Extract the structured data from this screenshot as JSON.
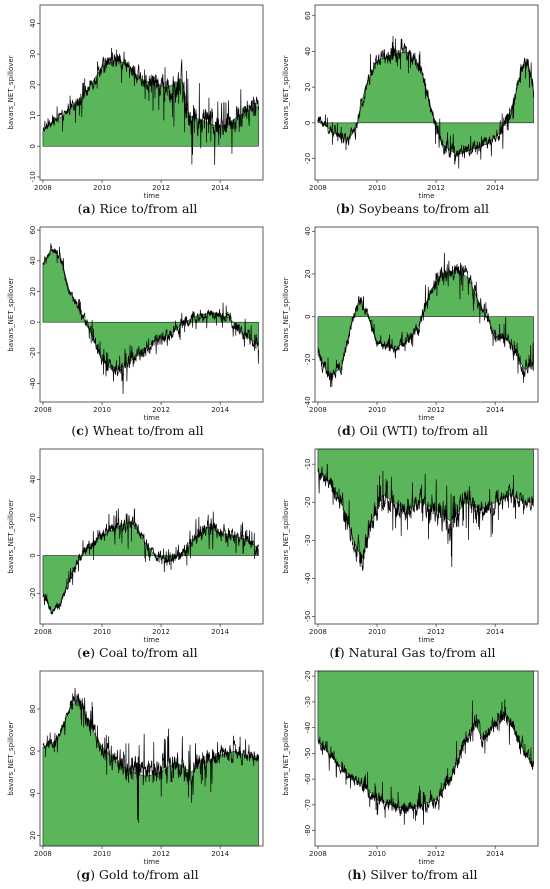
{
  "colors": {
    "fill": "#5BB55B",
    "line": "#000000",
    "axis": "#333333"
  },
  "chart_data": [
    {
      "type": "area",
      "letter": "a",
      "caption_text": "Rice to/from all",
      "xlabel": "time",
      "ylabel": "bavars_NET_spillover",
      "x_ticks": [
        2008,
        2010,
        2012,
        2014
      ],
      "y_ticks": [
        -10,
        0,
        10,
        20,
        30,
        40
      ],
      "xlim": [
        2007.9,
        2015.45
      ],
      "ylim": [
        -11,
        46
      ],
      "x_range": [
        2008.0,
        2015.3
      ],
      "baseline": 0,
      "anchors": [
        [
          2008.0,
          5
        ],
        [
          2008.3,
          8
        ],
        [
          2008.7,
          10
        ],
        [
          2009.0,
          13
        ],
        [
          2009.5,
          18
        ],
        [
          2010.0,
          26
        ],
        [
          2010.5,
          28
        ],
        [
          2010.8,
          27
        ],
        [
          2011.3,
          22
        ],
        [
          2011.8,
          20
        ],
        [
          2012.2,
          19
        ],
        [
          2012.7,
          22
        ],
        [
          2012.95,
          10
        ],
        [
          2013.5,
          8
        ],
        [
          2014.0,
          6
        ],
        [
          2014.5,
          9
        ],
        [
          2015.0,
          12
        ],
        [
          2015.3,
          13
        ]
      ],
      "noise": [
        [
          2008.0,
          2
        ],
        [
          2009.0,
          3
        ],
        [
          2010.0,
          4
        ],
        [
          2011.0,
          4
        ],
        [
          2012.0,
          6
        ],
        [
          2012.6,
          10
        ],
        [
          2013.2,
          8
        ],
        [
          2014.0,
          6
        ],
        [
          2015.3,
          6
        ]
      ]
    },
    {
      "type": "area",
      "letter": "b",
      "caption_text": "Soybeans to/from all",
      "xlabel": "time",
      "ylabel": "bavars_NET_spillover",
      "x_ticks": [
        2008,
        2010,
        2012,
        2014
      ],
      "y_ticks": [
        -20,
        0,
        20,
        40,
        60
      ],
      "xlim": [
        2007.9,
        2015.45
      ],
      "ylim": [
        -32,
        66
      ],
      "x_range": [
        2008.0,
        2015.3
      ],
      "baseline": 0,
      "anchors": [
        [
          2008.0,
          2
        ],
        [
          2008.5,
          -5
        ],
        [
          2009.0,
          -10
        ],
        [
          2009.3,
          -3
        ],
        [
          2009.6,
          20
        ],
        [
          2010.0,
          35
        ],
        [
          2010.5,
          38
        ],
        [
          2011.0,
          40
        ],
        [
          2011.5,
          30
        ],
        [
          2011.8,
          10
        ],
        [
          2012.2,
          -12
        ],
        [
          2012.7,
          -18
        ],
        [
          2013.2,
          -15
        ],
        [
          2013.7,
          -12
        ],
        [
          2014.2,
          -5
        ],
        [
          2014.6,
          10
        ],
        [
          2014.9,
          30
        ],
        [
          2015.1,
          35
        ],
        [
          2015.3,
          18
        ]
      ],
      "noise": [
        [
          2008.0,
          4
        ],
        [
          2009.5,
          6
        ],
        [
          2011.0,
          7
        ],
        [
          2012.5,
          7
        ],
        [
          2014.0,
          6
        ],
        [
          2015.3,
          7
        ]
      ]
    },
    {
      "type": "area",
      "letter": "c",
      "caption_text": "Wheat to/from all",
      "xlabel": "time",
      "ylabel": "bavars_NET_spillover",
      "x_ticks": [
        2008,
        2010,
        2012,
        2014
      ],
      "y_ticks": [
        -40,
        -20,
        0,
        20,
        40,
        60
      ],
      "xlim": [
        2007.9,
        2015.45
      ],
      "ylim": [
        -52,
        62
      ],
      "x_range": [
        2008.0,
        2015.3
      ],
      "baseline": 0,
      "anchors": [
        [
          2008.0,
          38
        ],
        [
          2008.3,
          48
        ],
        [
          2008.6,
          42
        ],
        [
          2008.9,
          20
        ],
        [
          2009.3,
          5
        ],
        [
          2009.7,
          -10
        ],
        [
          2010.0,
          -25
        ],
        [
          2010.4,
          -32
        ],
        [
          2010.8,
          -28
        ],
        [
          2011.3,
          -20
        ],
        [
          2011.8,
          -12
        ],
        [
          2012.3,
          -8
        ],
        [
          2012.8,
          0
        ],
        [
          2013.3,
          5
        ],
        [
          2013.8,
          6
        ],
        [
          2014.3,
          3
        ],
        [
          2014.8,
          -8
        ],
        [
          2015.3,
          -15
        ]
      ],
      "noise": [
        [
          2008.0,
          4
        ],
        [
          2009.0,
          5
        ],
        [
          2010.5,
          8
        ],
        [
          2012.0,
          7
        ],
        [
          2013.5,
          6
        ],
        [
          2015.3,
          7
        ]
      ]
    },
    {
      "type": "area",
      "letter": "d",
      "caption_text": "Oil (WTI) to/from all",
      "xlabel": "time",
      "ylabel": "bavars_NET_spillover",
      "x_ticks": [
        2008,
        2010,
        2012,
        2014
      ],
      "y_ticks": [
        -40,
        -20,
        0,
        20,
        40
      ],
      "xlim": [
        2007.9,
        2015.45
      ],
      "ylim": [
        -40,
        42
      ],
      "x_range": [
        2008.0,
        2015.3
      ],
      "baseline": 0,
      "anchors": [
        [
          2008.0,
          -18
        ],
        [
          2008.4,
          -28
        ],
        [
          2008.8,
          -24
        ],
        [
          2009.1,
          -5
        ],
        [
          2009.4,
          8
        ],
        [
          2009.7,
          0
        ],
        [
          2010.0,
          -12
        ],
        [
          2010.5,
          -15
        ],
        [
          2011.0,
          -12
        ],
        [
          2011.4,
          -5
        ],
        [
          2011.8,
          12
        ],
        [
          2012.2,
          20
        ],
        [
          2012.7,
          22
        ],
        [
          2013.1,
          18
        ],
        [
          2013.5,
          5
        ],
        [
          2014.0,
          -8
        ],
        [
          2014.5,
          -12
        ],
        [
          2015.0,
          -25
        ],
        [
          2015.3,
          -22
        ]
      ],
      "noise": [
        [
          2008.0,
          5
        ],
        [
          2009.5,
          4
        ],
        [
          2011.0,
          4
        ],
        [
          2012.5,
          7
        ],
        [
          2014.0,
          5
        ],
        [
          2015.3,
          6
        ]
      ]
    },
    {
      "type": "area",
      "letter": "e",
      "caption_text": "Coal to/from all",
      "xlabel": "time",
      "ylabel": "bavars_NET_spillover",
      "x_ticks": [
        2008,
        2010,
        2012,
        2014
      ],
      "y_ticks": [
        -20,
        0,
        20,
        40
      ],
      "xlim": [
        2007.9,
        2015.45
      ],
      "ylim": [
        -36,
        56
      ],
      "x_range": [
        2008.0,
        2015.3
      ],
      "baseline": 0,
      "anchors": [
        [
          2008.0,
          -20
        ],
        [
          2008.3,
          -30
        ],
        [
          2008.6,
          -25
        ],
        [
          2009.0,
          -8
        ],
        [
          2009.5,
          5
        ],
        [
          2010.0,
          10
        ],
        [
          2010.5,
          15
        ],
        [
          2011.0,
          18
        ],
        [
          2011.4,
          8
        ],
        [
          2011.8,
          0
        ],
        [
          2012.3,
          -3
        ],
        [
          2012.8,
          2
        ],
        [
          2013.2,
          10
        ],
        [
          2013.6,
          15
        ],
        [
          2014.0,
          12
        ],
        [
          2014.5,
          10
        ],
        [
          2015.0,
          8
        ],
        [
          2015.3,
          3
        ]
      ],
      "noise": [
        [
          2008.0,
          3
        ],
        [
          2009.5,
          5
        ],
        [
          2011.0,
          7
        ],
        [
          2012.0,
          4
        ],
        [
          2013.5,
          9
        ],
        [
          2015.3,
          5
        ]
      ]
    },
    {
      "type": "area",
      "letter": "f",
      "caption_text": "Natural Gas to/from all",
      "xlabel": "time",
      "ylabel": "bavars_NET_spillover",
      "x_ticks": [
        2008,
        2010,
        2012,
        2014
      ],
      "y_ticks": [
        -50,
        -40,
        -30,
        -20,
        -10
      ],
      "xlim": [
        2007.9,
        2015.45
      ],
      "ylim": [
        -52,
        -6
      ],
      "x_range": [
        2008.0,
        2015.3
      ],
      "baseline": -6,
      "anchors": [
        [
          2008.0,
          -12
        ],
        [
          2008.4,
          -15
        ],
        [
          2008.8,
          -20
        ],
        [
          2009.2,
          -30
        ],
        [
          2009.5,
          -35
        ],
        [
          2009.8,
          -25
        ],
        [
          2010.2,
          -18
        ],
        [
          2010.6,
          -20
        ],
        [
          2011.0,
          -22
        ],
        [
          2011.5,
          -20
        ],
        [
          2012.0,
          -22
        ],
        [
          2012.5,
          -25
        ],
        [
          2013.0,
          -20
        ],
        [
          2013.5,
          -22
        ],
        [
          2014.0,
          -20
        ],
        [
          2014.5,
          -18
        ],
        [
          2015.0,
          -20
        ],
        [
          2015.3,
          -20
        ]
      ],
      "noise": [
        [
          2008.0,
          3
        ],
        [
          2009.5,
          6
        ],
        [
          2011.0,
          5
        ],
        [
          2012.5,
          7
        ],
        [
          2014.0,
          4
        ],
        [
          2015.3,
          3
        ]
      ]
    },
    {
      "type": "area",
      "letter": "g",
      "caption_text": "Gold to/from all",
      "xlabel": "time",
      "ylabel": "bavars_NET_spillover",
      "x_ticks": [
        2008,
        2010,
        2012,
        2014
      ],
      "y_ticks": [
        20,
        40,
        60,
        80
      ],
      "xlim": [
        2007.9,
        2015.45
      ],
      "ylim": [
        15,
        98
      ],
      "x_range": [
        2008.0,
        2015.3
      ],
      "baseline": 15,
      "anchors": [
        [
          2008.0,
          62
        ],
        [
          2008.5,
          65
        ],
        [
          2008.9,
          80
        ],
        [
          2009.2,
          85
        ],
        [
          2009.6,
          72
        ],
        [
          2010.0,
          62
        ],
        [
          2010.5,
          55
        ],
        [
          2011.0,
          50
        ],
        [
          2011.5,
          48
        ],
        [
          2012.0,
          50
        ],
        [
          2012.5,
          55
        ],
        [
          2013.0,
          50
        ],
        [
          2013.5,
          55
        ],
        [
          2014.0,
          58
        ],
        [
          2014.5,
          60
        ],
        [
          2015.0,
          57
        ],
        [
          2015.3,
          58
        ]
      ],
      "noise": [
        [
          2008.0,
          3
        ],
        [
          2009.0,
          5
        ],
        [
          2010.3,
          9
        ],
        [
          2011.5,
          12
        ],
        [
          2012.8,
          11
        ],
        [
          2014.0,
          7
        ],
        [
          2015.3,
          5
        ]
      ]
    },
    {
      "type": "area",
      "letter": "h",
      "caption_text": "Silver to/from all",
      "xlabel": "time",
      "ylabel": "bavars_NET_spillover",
      "x_ticks": [
        2008,
        2010,
        2012,
        2014
      ],
      "y_ticks": [
        -80,
        -70,
        -60,
        -50,
        -40,
        -30,
        -20
      ],
      "xlim": [
        2007.9,
        2015.45
      ],
      "ylim": [
        -86,
        -18
      ],
      "x_range": [
        2008.0,
        2015.3
      ],
      "baseline": -18,
      "anchors": [
        [
          2008.0,
          -45
        ],
        [
          2008.5,
          -52
        ],
        [
          2009.0,
          -58
        ],
        [
          2009.5,
          -62
        ],
        [
          2010.0,
          -68
        ],
        [
          2010.5,
          -70
        ],
        [
          2011.0,
          -72
        ],
        [
          2011.5,
          -70
        ],
        [
          2012.0,
          -68
        ],
        [
          2012.5,
          -60
        ],
        [
          2013.0,
          -45
        ],
        [
          2013.3,
          -38
        ],
        [
          2013.6,
          -45
        ],
        [
          2014.0,
          -38
        ],
        [
          2014.3,
          -35
        ],
        [
          2014.7,
          -42
        ],
        [
          2015.0,
          -50
        ],
        [
          2015.3,
          -55
        ]
      ],
      "noise": [
        [
          2008.0,
          3
        ],
        [
          2009.5,
          4
        ],
        [
          2011.0,
          4
        ],
        [
          2012.5,
          5
        ],
        [
          2013.5,
          6
        ],
        [
          2015.3,
          4
        ]
      ]
    }
  ]
}
